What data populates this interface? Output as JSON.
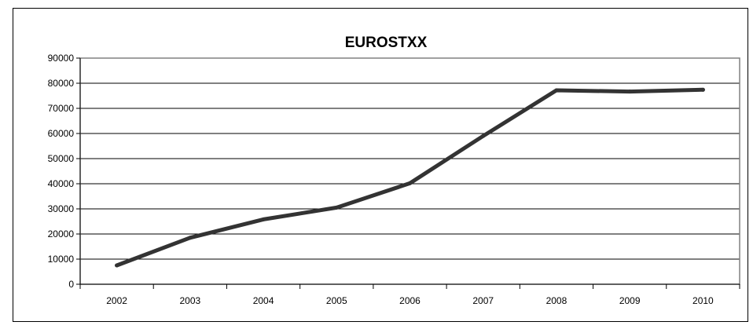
{
  "chart_data": {
    "type": "line",
    "title": "EUROSTXX",
    "xlabel": "",
    "ylabel": "",
    "categories": [
      "2002",
      "2003",
      "2004",
      "2005",
      "2006",
      "2007",
      "2008",
      "2009",
      "2010"
    ],
    "series": [
      {
        "values": [
          7500,
          18500,
          25800,
          30500,
          40200,
          59000,
          77200,
          76700,
          77400
        ],
        "color": "#333333"
      }
    ],
    "ylim": [
      0,
      90000
    ],
    "yticks": [
      "0",
      "10000",
      "20000",
      "30000",
      "40000",
      "50000",
      "60000",
      "70000",
      "80000",
      "90000"
    ],
    "grid": true,
    "legend": "none"
  }
}
